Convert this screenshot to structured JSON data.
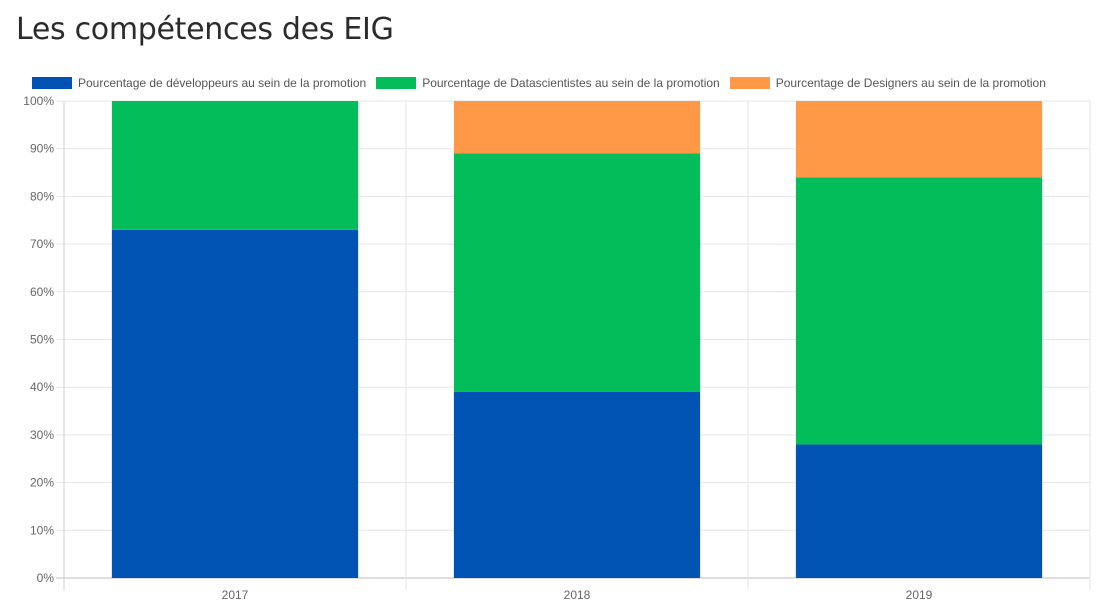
{
  "title": "Les compétences des EIG",
  "chart_data": {
    "type": "bar",
    "stacked": true,
    "categories": [
      "2017",
      "2018",
      "2019"
    ],
    "series": [
      {
        "name": "Pourcentage de développeurs au sein de la promotion",
        "color": "#0053b3",
        "values": [
          73,
          39,
          28
        ]
      },
      {
        "name": "Pourcentage de Datascientistes au sein de la promotion",
        "color": "#03bd5b",
        "values": [
          27,
          50,
          56
        ]
      },
      {
        "name": "Pourcentage de Designers au sein de la promotion",
        "color": "#ff9947",
        "values": [
          0,
          11,
          16
        ]
      }
    ],
    "ylim": [
      0,
      100
    ],
    "yticks": [
      "0%",
      "10%",
      "20%",
      "30%",
      "40%",
      "50%",
      "60%",
      "70%",
      "80%",
      "90%",
      "100%"
    ],
    "grid": true,
    "legend_position": "top"
  }
}
